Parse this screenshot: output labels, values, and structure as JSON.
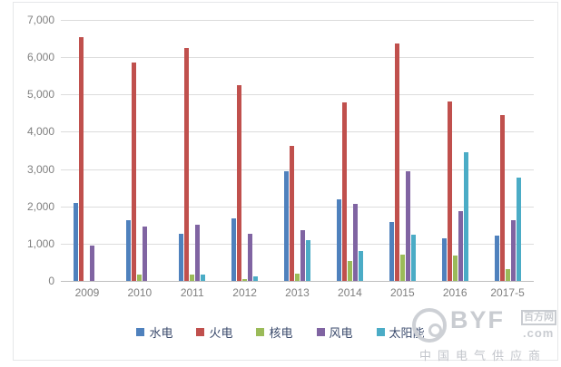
{
  "chart_data": {
    "type": "bar",
    "title": "",
    "xlabel": "",
    "ylabel": "",
    "categories": [
      "2009",
      "2010",
      "2011",
      "2012",
      "2013",
      "2014",
      "2015",
      "2016",
      "2017-5"
    ],
    "series": [
      {
        "name": "水电",
        "color": "#4f81bd",
        "values": [
          2090,
          1640,
          1270,
          1680,
          2950,
          2180,
          1590,
          1150,
          1220
        ]
      },
      {
        "name": "火电",
        "color": "#c0504d",
        "values": [
          6550,
          5850,
          6250,
          5250,
          3620,
          4780,
          6380,
          4810,
          4440
        ]
      },
      {
        "name": "核电",
        "color": "#9bbb59",
        "values": [
          0,
          170,
          170,
          40,
          190,
          530,
          710,
          690,
          320
        ]
      },
      {
        "name": "风电",
        "color": "#8064a2",
        "values": [
          960,
          1450,
          1500,
          1270,
          1370,
          2070,
          2930,
          1870,
          1620
        ]
      },
      {
        "name": "太阳能",
        "color": "#4bacc6",
        "values": [
          0,
          0,
          180,
          120,
          1090,
          800,
          1240,
          3450,
          2760
        ]
      }
    ],
    "ylim": [
      0,
      7000
    ],
    "ytick_step": 1000,
    "ytick_labels": [
      "7,000",
      "6,000",
      "5,000",
      "4,000",
      "3,000",
      "2,000",
      "1,000",
      "0"
    ],
    "grid": true,
    "legend_position": "bottom"
  },
  "watermark": {
    "brand": "BYF",
    "box_text": "百方网",
    "domain": ".com",
    "tagline": "中国电气供应商"
  }
}
